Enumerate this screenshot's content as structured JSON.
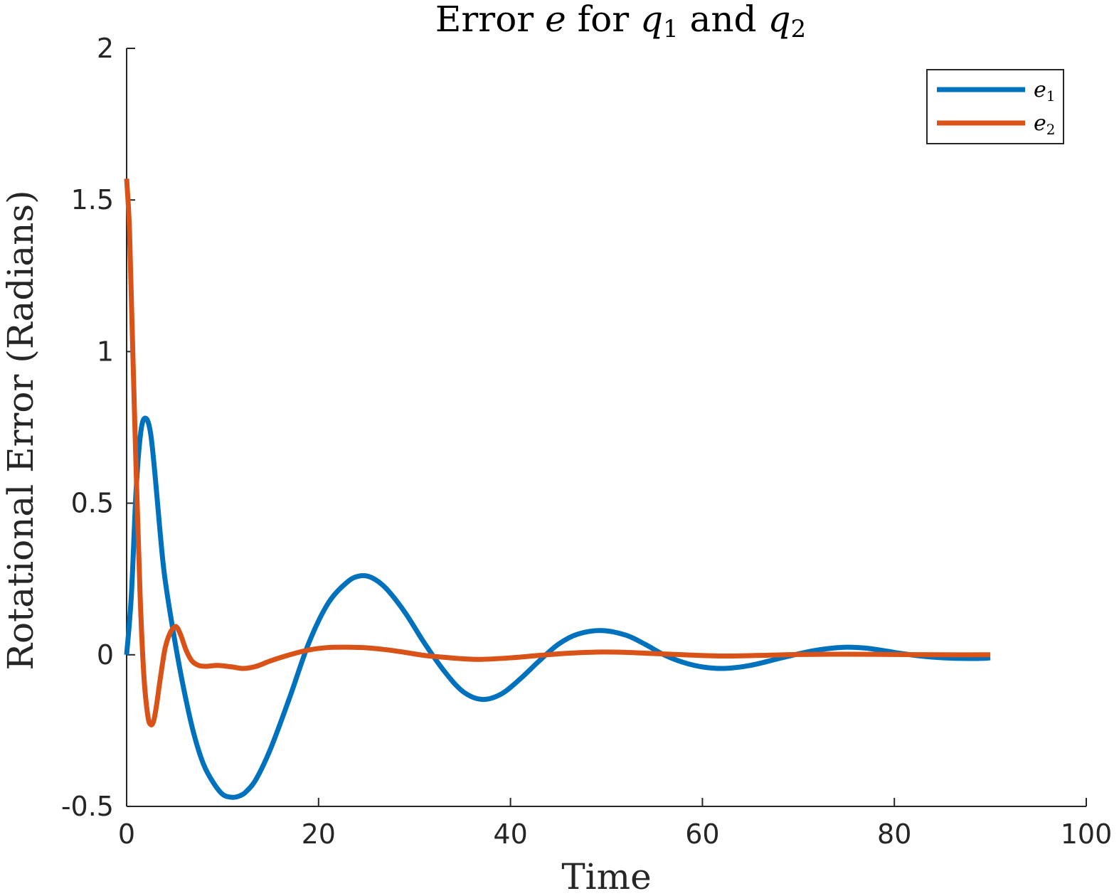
{
  "chart_data": {
    "type": "line",
    "title": "Error e for q1 and q2",
    "title_parts": [
      "Error ",
      "e",
      " for ",
      "q",
      "1",
      " and ",
      "q",
      "2"
    ],
    "xlabel": "Time",
    "ylabel": "Rotational Error (Radians)",
    "xlim": [
      0,
      100
    ],
    "ylim": [
      -0.5,
      2
    ],
    "xticks": [
      0,
      20,
      40,
      60,
      80,
      100
    ],
    "xtick_labels": [
      "0",
      "20",
      "40",
      "60",
      "80",
      "100"
    ],
    "yticks": [
      -0.5,
      0,
      0.5,
      1,
      1.5,
      2
    ],
    "ytick_labels": [
      "-0.5",
      "0",
      "0.5",
      "1",
      "1.5",
      "2"
    ],
    "grid": false,
    "legend_position": "top-right",
    "series": [
      {
        "name": "e1",
        "name_parts": [
          "e",
          "1"
        ],
        "color": "#0072BD",
        "x": [
          0,
          0.5,
          1,
          1.5,
          2,
          2.5,
          3,
          3.5,
          4,
          5,
          6,
          7,
          8,
          9,
          10,
          11,
          11.8,
          12.5,
          13.5,
          15,
          17,
          19,
          21,
          23,
          24.3,
          25.5,
          27,
          29,
          31,
          33,
          35,
          37,
          39,
          41,
          43,
          45,
          47,
          49.5,
          52,
          54,
          56,
          58,
          60,
          62.3,
          65,
          68,
          71,
          73,
          75,
          77,
          79,
          81,
          83,
          85,
          87,
          89,
          90
        ],
        "values": [
          0,
          0.2,
          0.55,
          0.74,
          0.78,
          0.73,
          0.58,
          0.4,
          0.25,
          0.05,
          -0.12,
          -0.26,
          -0.36,
          -0.42,
          -0.46,
          -0.47,
          -0.465,
          -0.45,
          -0.41,
          -0.31,
          -0.14,
          0.04,
          0.17,
          0.24,
          0.26,
          0.255,
          0.22,
          0.14,
          0.04,
          -0.05,
          -0.12,
          -0.147,
          -0.13,
          -0.08,
          -0.02,
          0.035,
          0.068,
          0.08,
          0.065,
          0.035,
          0.0,
          -0.025,
          -0.04,
          -0.045,
          -0.035,
          -0.012,
          0.01,
          0.02,
          0.025,
          0.022,
          0.013,
          0.003,
          -0.005,
          -0.01,
          -0.012,
          -0.012,
          -0.01
        ]
      },
      {
        "name": "e2",
        "name_parts": [
          "e",
          "2"
        ],
        "color": "#D95319",
        "x": [
          0,
          0.3,
          0.6,
          1,
          1.4,
          1.8,
          2.2,
          2.5,
          2.8,
          3.1,
          3.5,
          4,
          4.5,
          5,
          5.3,
          5.7,
          6.2,
          6.8,
          7.5,
          8.3,
          9.5,
          11,
          12.2,
          13.5,
          15,
          17,
          19,
          21,
          23,
          25,
          27,
          29,
          31,
          33,
          35,
          37,
          40,
          43,
          46,
          49,
          52,
          55,
          58,
          62,
          66,
          70,
          75,
          80,
          85,
          90
        ],
        "values": [
          1.57,
          1.4,
          1.05,
          0.6,
          0.2,
          -0.07,
          -0.2,
          -0.23,
          -0.22,
          -0.17,
          -0.08,
          0.02,
          0.07,
          0.092,
          0.088,
          0.06,
          0.015,
          -0.02,
          -0.035,
          -0.038,
          -0.035,
          -0.04,
          -0.045,
          -0.038,
          -0.02,
          0.0,
          0.016,
          0.024,
          0.025,
          0.023,
          0.017,
          0.008,
          -0.002,
          -0.008,
          -0.013,
          -0.015,
          -0.01,
          -0.002,
          0.005,
          0.009,
          0.008,
          0.004,
          0.0,
          -0.004,
          -0.002,
          0.001,
          0.002,
          0.001,
          0.0,
          0.0
        ]
      }
    ]
  }
}
